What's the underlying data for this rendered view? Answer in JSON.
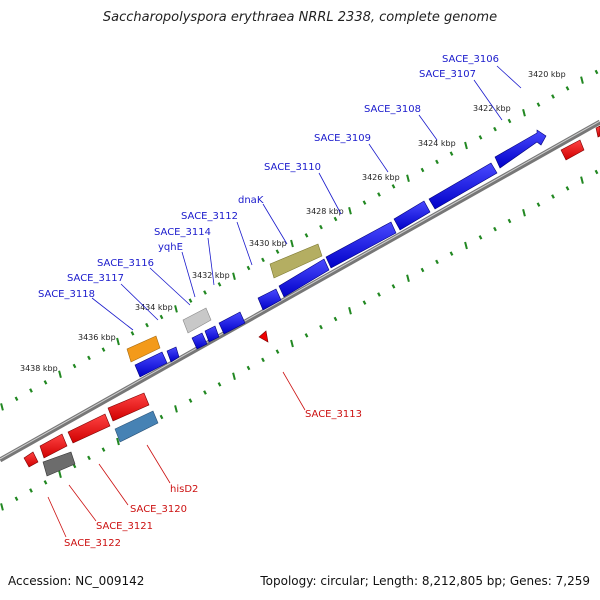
{
  "title": "Saccharopolyspora erythraea NRRL 2338, complete genome",
  "footer": {
    "accession": "Accession: NC_009142",
    "topology": "Topology: circular; Length: 8,212,805 bp; Genes: 7,259"
  },
  "colors": {
    "forward": "#0000ee",
    "reverse": "#ee0000",
    "forward_label": "#1a1acc",
    "reverse_label": "#cc1111",
    "tick": "#228822",
    "backbone": "#888888"
  },
  "kbp_labels": [
    "3420 kbp",
    "3422 kbp",
    "3424 kbp",
    "3426 kbp",
    "3428 kbp",
    "3430 kbp",
    "3432 kbp",
    "3434 kbp",
    "3436 kbp",
    "3438 kbp"
  ],
  "forward_genes": [
    {
      "name": "SACE_3106"
    },
    {
      "name": "SACE_3107"
    },
    {
      "name": "SACE_3108"
    },
    {
      "name": "SACE_3109"
    },
    {
      "name": "SACE_3110"
    },
    {
      "name": "dnaK"
    },
    {
      "name": "SACE_3112"
    },
    {
      "name": "SACE_3114"
    },
    {
      "name": "yqhE"
    },
    {
      "name": "SACE_3116"
    },
    {
      "name": "SACE_3117"
    },
    {
      "name": "SACE_3118"
    }
  ],
  "reverse_genes": [
    {
      "name": "SACE_3113"
    },
    {
      "name": "hisD2"
    },
    {
      "name": "SACE_3120"
    },
    {
      "name": "SACE_3121"
    },
    {
      "name": "SACE_3122"
    }
  ]
}
